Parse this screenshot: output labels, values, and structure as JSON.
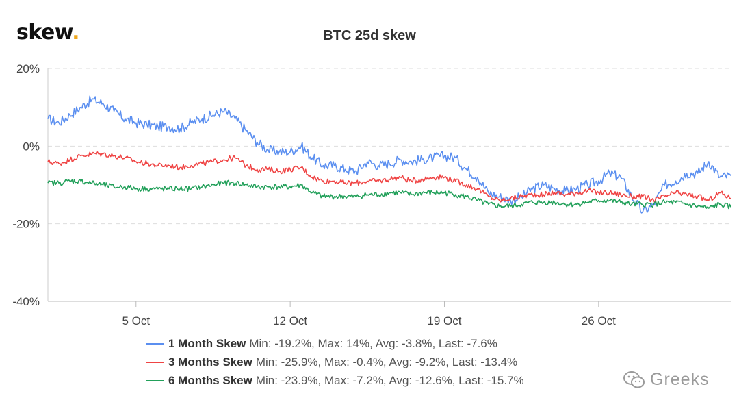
{
  "brand": {
    "name": "skew",
    "dot": "."
  },
  "watermark": {
    "text": "Greeks",
    "icon": "wechat-icon"
  },
  "chart_data": {
    "type": "line",
    "title": "BTC 25d skew",
    "xlabel": "",
    "ylabel": "",
    "x_range": [
      "2020-10-01",
      "2020-11-01"
    ],
    "x_ticks": [
      {
        "date": "2020-10-05",
        "label": "5 Oct"
      },
      {
        "date": "2020-10-12",
        "label": "12 Oct"
      },
      {
        "date": "2020-10-19",
        "label": "19 Oct"
      },
      {
        "date": "2020-10-26",
        "label": "26 Oct"
      }
    ],
    "y_ticks": [
      "20%",
      "0%",
      "-20%",
      "-40%"
    ],
    "ylim": [
      -40,
      20
    ],
    "grid": true,
    "legend_position": "bottom",
    "series": [
      {
        "name": "1 Month Skew",
        "stats": "Min: -19.2%, Max: 14%, Avg: -3.8%, Last: -7.6%",
        "color": "#5b8ff0",
        "dates": [
          "2020-10-01",
          "2020-10-01T12:00",
          "2020-10-02",
          "2020-10-02T12:00",
          "2020-10-03",
          "2020-10-03T12:00",
          "2020-10-04",
          "2020-10-04T12:00",
          "2020-10-05",
          "2020-10-05T12:00",
          "2020-10-06",
          "2020-10-06T12:00",
          "2020-10-07",
          "2020-10-07T12:00",
          "2020-10-08",
          "2020-10-08T12:00",
          "2020-10-09",
          "2020-10-09T12:00",
          "2020-10-10",
          "2020-10-10T12:00",
          "2020-10-11",
          "2020-10-11T12:00",
          "2020-10-12",
          "2020-10-12T12:00",
          "2020-10-13",
          "2020-10-13T12:00",
          "2020-10-14",
          "2020-10-14T12:00",
          "2020-10-15",
          "2020-10-15T12:00",
          "2020-10-16",
          "2020-10-16T12:00",
          "2020-10-17",
          "2020-10-17T12:00",
          "2020-10-18",
          "2020-10-18T12:00",
          "2020-10-19",
          "2020-10-19T12:00",
          "2020-10-20",
          "2020-10-20T12:00",
          "2020-10-21",
          "2020-10-21T12:00",
          "2020-10-22",
          "2020-10-22T12:00",
          "2020-10-23",
          "2020-10-23T12:00",
          "2020-10-24",
          "2020-10-24T12:00",
          "2020-10-25",
          "2020-10-25T12:00",
          "2020-10-26",
          "2020-10-26T12:00",
          "2020-10-27",
          "2020-10-27T12:00",
          "2020-10-28",
          "2020-10-28T12:00",
          "2020-10-29",
          "2020-10-29T12:00",
          "2020-10-30",
          "2020-10-30T12:00",
          "2020-10-31",
          "2020-10-31T12:00",
          "2020-11-01"
        ],
        "values": [
          7,
          6,
          8,
          10,
          12,
          11,
          9,
          7,
          6,
          5.5,
          5,
          5,
          4.5,
          6,
          7,
          8,
          9,
          7,
          4,
          1,
          -1,
          -1.5,
          -1.5,
          0,
          -3,
          -5,
          -5,
          -6,
          -6.5,
          -4,
          -5,
          -4.5,
          -3.5,
          -4,
          -3.5,
          -3,
          -2.5,
          -3,
          -6,
          -8,
          -12,
          -13,
          -14,
          -13,
          -11,
          -10,
          -11,
          -11.5,
          -11,
          -10,
          -9,
          -7,
          -8,
          -13,
          -17,
          -15,
          -10,
          -9,
          -7,
          -7,
          -4,
          -8,
          -7.6
        ]
      },
      {
        "name": "3 Months Skew",
        "stats": "Min: -25.9%, Max: -0.4%, Avg: -9.2%, Last: -13.4%",
        "color": "#ef4444",
        "dates": [
          "2020-10-01",
          "2020-10-01T12:00",
          "2020-10-02",
          "2020-10-02T12:00",
          "2020-10-03",
          "2020-10-03T12:00",
          "2020-10-04",
          "2020-10-04T12:00",
          "2020-10-05",
          "2020-10-05T12:00",
          "2020-10-06",
          "2020-10-06T12:00",
          "2020-10-07",
          "2020-10-07T12:00",
          "2020-10-08",
          "2020-10-08T12:00",
          "2020-10-09",
          "2020-10-09T12:00",
          "2020-10-10",
          "2020-10-10T12:00",
          "2020-10-11",
          "2020-10-11T12:00",
          "2020-10-12",
          "2020-10-12T12:00",
          "2020-10-13",
          "2020-10-13T12:00",
          "2020-10-14",
          "2020-10-14T12:00",
          "2020-10-15",
          "2020-10-15T12:00",
          "2020-10-16",
          "2020-10-16T12:00",
          "2020-10-17",
          "2020-10-17T12:00",
          "2020-10-18",
          "2020-10-18T12:00",
          "2020-10-19",
          "2020-10-19T12:00",
          "2020-10-20",
          "2020-10-20T12:00",
          "2020-10-21",
          "2020-10-21T12:00",
          "2020-10-22",
          "2020-10-22T12:00",
          "2020-10-23",
          "2020-10-23T12:00",
          "2020-10-24",
          "2020-10-24T12:00",
          "2020-10-25",
          "2020-10-25T12:00",
          "2020-10-26",
          "2020-10-26T12:00",
          "2020-10-27",
          "2020-10-27T12:00",
          "2020-10-28",
          "2020-10-28T12:00",
          "2020-10-29",
          "2020-10-29T12:00",
          "2020-10-30",
          "2020-10-30T12:00",
          "2020-10-31",
          "2020-10-31T12:00",
          "2020-11-01"
        ],
        "values": [
          -4,
          -4.5,
          -3.5,
          -2.5,
          -2,
          -2,
          -2.5,
          -3,
          -4,
          -4.5,
          -5,
          -5,
          -5.5,
          -5,
          -4.5,
          -4,
          -3.5,
          -3,
          -5,
          -6,
          -6,
          -6.5,
          -6,
          -5.5,
          -8,
          -9,
          -9,
          -9.5,
          -9.5,
          -9,
          -9,
          -8.5,
          -8,
          -9,
          -8.5,
          -8,
          -8,
          -9,
          -10,
          -11,
          -13,
          -14,
          -13.5,
          -13,
          -12.5,
          -12.5,
          -12,
          -12.5,
          -12,
          -11.5,
          -12,
          -12,
          -12.5,
          -13,
          -13,
          -14,
          -13,
          -12,
          -12.5,
          -13,
          -14,
          -12,
          -13.4
        ]
      },
      {
        "name": "6 Months Skew",
        "stats": "Min: -23.9%, Max: -7.2%, Avg: -12.6%, Last: -15.7%",
        "color": "#22a05a",
        "dates": [
          "2020-10-01",
          "2020-10-01T12:00",
          "2020-10-02",
          "2020-10-02T12:00",
          "2020-10-03",
          "2020-10-03T12:00",
          "2020-10-04",
          "2020-10-04T12:00",
          "2020-10-05",
          "2020-10-05T12:00",
          "2020-10-06",
          "2020-10-06T12:00",
          "2020-10-07",
          "2020-10-07T12:00",
          "2020-10-08",
          "2020-10-08T12:00",
          "2020-10-09",
          "2020-10-09T12:00",
          "2020-10-10",
          "2020-10-10T12:00",
          "2020-10-11",
          "2020-10-11T12:00",
          "2020-10-12",
          "2020-10-12T12:00",
          "2020-10-13",
          "2020-10-13T12:00",
          "2020-10-14",
          "2020-10-14T12:00",
          "2020-10-15",
          "2020-10-15T12:00",
          "2020-10-16",
          "2020-10-16T12:00",
          "2020-10-17",
          "2020-10-17T12:00",
          "2020-10-18",
          "2020-10-18T12:00",
          "2020-10-19",
          "2020-10-19T12:00",
          "2020-10-20",
          "2020-10-20T12:00",
          "2020-10-21",
          "2020-10-21T12:00",
          "2020-10-22",
          "2020-10-22T12:00",
          "2020-10-23",
          "2020-10-23T12:00",
          "2020-10-24",
          "2020-10-24T12:00",
          "2020-10-25",
          "2020-10-25T12:00",
          "2020-10-26",
          "2020-10-26T12:00",
          "2020-10-27",
          "2020-10-27T12:00",
          "2020-10-28",
          "2020-10-28T12:00",
          "2020-10-29",
          "2020-10-29T12:00",
          "2020-10-30",
          "2020-10-30T12:00",
          "2020-10-31",
          "2020-10-31T12:00",
          "2020-11-01"
        ],
        "values": [
          -9.5,
          -9.5,
          -9,
          -9,
          -9.5,
          -10,
          -10.5,
          -10.5,
          -11,
          -11,
          -11,
          -11,
          -11,
          -11,
          -10.5,
          -10,
          -9.5,
          -9.5,
          -10,
          -10.5,
          -10.5,
          -10.5,
          -10.5,
          -10,
          -12,
          -13,
          -13,
          -13,
          -13,
          -12.5,
          -12.5,
          -12,
          -12,
          -12.5,
          -12,
          -12,
          -12,
          -12.5,
          -13,
          -14,
          -15,
          -15.5,
          -15.5,
          -15,
          -14.5,
          -14.5,
          -14.5,
          -15,
          -15,
          -14.5,
          -14,
          -14,
          -14.5,
          -15,
          -15,
          -15,
          -14.5,
          -14.5,
          -15,
          -15.5,
          -16,
          -15,
          -15.7
        ]
      }
    ]
  }
}
